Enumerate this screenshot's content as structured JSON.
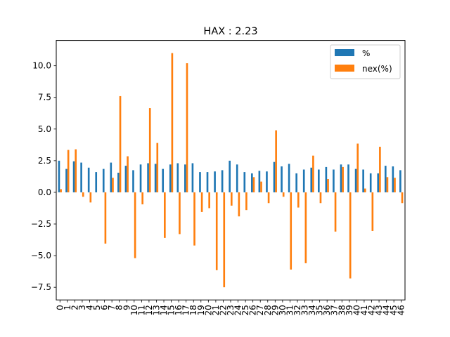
{
  "chart_data": {
    "type": "bar",
    "title": "HAX : 2.23",
    "xlabel": "",
    "ylabel": "",
    "categories": [
      "0",
      "1",
      "2",
      "3",
      "4",
      "5",
      "6",
      "7",
      "8",
      "9",
      "10",
      "11",
      "12",
      "13",
      "14",
      "15",
      "16",
      "17",
      "18",
      "19",
      "20",
      "21",
      "22",
      "23",
      "24",
      "25",
      "26",
      "27",
      "28",
      "29",
      "30",
      "31",
      "32",
      "33",
      "34",
      "35",
      "36",
      "37",
      "38",
      "39",
      "40",
      "41",
      "42",
      "43",
      "44",
      "45",
      "46"
    ],
    "ylim": [
      -8.5,
      12.0
    ],
    "yticks": [
      -7.5,
      -5.0,
      -2.5,
      0.0,
      2.5,
      5.0,
      7.5,
      10.0
    ],
    "ytick_labels": [
      "−7.5",
      "−5.0",
      "−2.5",
      "0.0",
      "2.5",
      "5.0",
      "7.5",
      "10.0"
    ],
    "legend_position": "top-right",
    "grid": false,
    "series": [
      {
        "name": "%",
        "color": "#1f77b4",
        "values": [
          2.5,
          1.85,
          2.45,
          2.35,
          1.95,
          1.6,
          1.85,
          2.35,
          1.55,
          2.1,
          1.75,
          2.2,
          2.3,
          2.25,
          1.85,
          2.2,
          2.3,
          2.2,
          2.3,
          1.6,
          1.6,
          1.65,
          1.75,
          2.5,
          2.2,
          1.6,
          1.5,
          1.7,
          1.65,
          2.4,
          2.05,
          2.25,
          1.5,
          1.8,
          1.95,
          1.8,
          2.0,
          1.8,
          2.2,
          2.2,
          1.85,
          1.8,
          1.5,
          1.5,
          2.1,
          2.05,
          1.75
        ]
      },
      {
        "name": "nex(%)",
        "color": "#ff7f0e",
        "values": [
          0.25,
          3.35,
          3.4,
          -0.35,
          -0.8,
          0.0,
          -4.05,
          1.15,
          7.6,
          2.85,
          -5.2,
          -0.95,
          6.65,
          3.9,
          -3.6,
          11.0,
          -3.3,
          10.2,
          -4.2,
          -1.55,
          -1.25,
          -6.15,
          -7.5,
          -1.05,
          -1.9,
          -1.4,
          1.2,
          0.85,
          -0.85,
          4.9,
          -0.35,
          -6.1,
          -1.2,
          -5.6,
          2.9,
          -0.85,
          1.05,
          -3.1,
          2.0,
          -6.8,
          3.85,
          0.3,
          -3.05,
          3.6,
          1.2,
          1.15,
          -0.85
        ]
      }
    ]
  }
}
